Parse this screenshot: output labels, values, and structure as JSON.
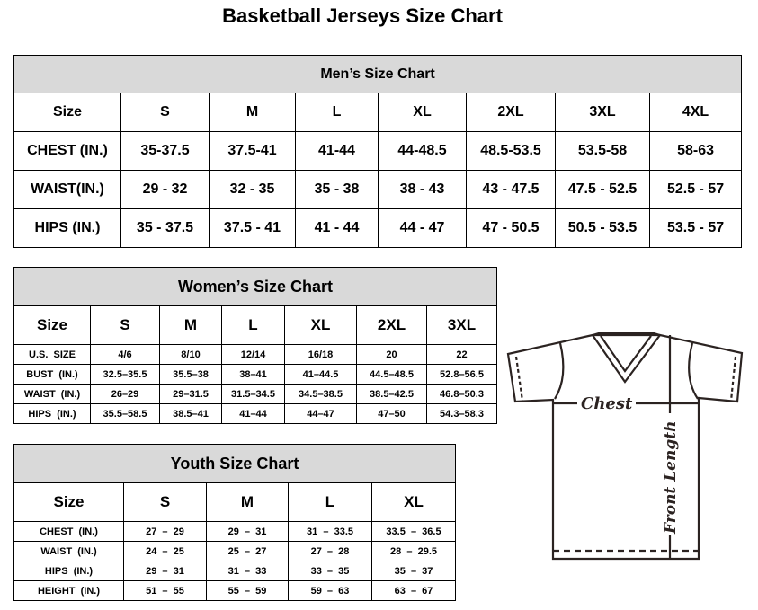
{
  "title": "Basketball Jerseys Size Chart",
  "men": {
    "caption": "Men’s Size Chart",
    "header": [
      "Size",
      "S",
      "M",
      "L",
      "XL",
      "2XL",
      "3XL",
      "4XL"
    ],
    "rows": [
      [
        "CHEST (IN.)",
        "35-37.5",
        "37.5-41",
        "41-44",
        "44-48.5",
        "48.5-53.5",
        "53.5-58",
        "58-63"
      ],
      [
        "WAIST(IN.)",
        "29 - 32",
        "32 - 35",
        "35 - 38",
        "38 - 43",
        "43 - 47.5",
        "47.5 - 52.5",
        "52.5 - 57"
      ],
      [
        "HIPS (IN.)",
        "35 - 37.5",
        "37.5 - 41",
        "41 - 44",
        "44 - 47",
        "47 - 50.5",
        "50.5 - 53.5",
        "53.5 - 57"
      ]
    ]
  },
  "women": {
    "caption": "Women’s Size Chart",
    "header": [
      "Size",
      "S",
      "M",
      "L",
      "XL",
      "2XL",
      "3XL"
    ],
    "rows": [
      [
        "U.S.  SIZE",
        "4/6",
        "8/10",
        "12/14",
        "16/18",
        "20",
        "22"
      ],
      [
        "BUST  (IN.)",
        "32.5–35.5",
        "35.5–38",
        "38–41",
        "41–44.5",
        "44.5–48.5",
        "52.8–56.5"
      ],
      [
        "WAIST  (IN.)",
        "26–29",
        "29–31.5",
        "31.5–34.5",
        "34.5–38.5",
        "38.5–42.5",
        "46.8–50.3"
      ],
      [
        "HIPS  (IN.)",
        "35.5–58.5",
        "38.5–41",
        "41–44",
        "44–47",
        "47–50",
        "54.3–58.3"
      ]
    ]
  },
  "youth": {
    "caption": "Youth Size Chart",
    "header": [
      "Size",
      "S",
      "M",
      "L",
      "XL"
    ],
    "rows": [
      [
        "CHEST  (IN.)",
        "27  –  29",
        "29  –  31",
        "31  –  33.5",
        "33.5  –  36.5"
      ],
      [
        "WAIST  (IN.)",
        "24  –  25",
        "25  –  27",
        "27  –  28",
        "28  –  29.5"
      ],
      [
        "HIPS  (IN.)",
        "29  –  31",
        "31  –  33",
        "33  –  35",
        "35  –  37"
      ],
      [
        "HEIGHT  (IN.)",
        "51  –  55",
        "55  –  59",
        "59  –  63",
        "63  –  67"
      ]
    ]
  },
  "diagram": {
    "chest_label": "Chest",
    "length_label": "Front Length",
    "line_color": "#2b2321"
  }
}
